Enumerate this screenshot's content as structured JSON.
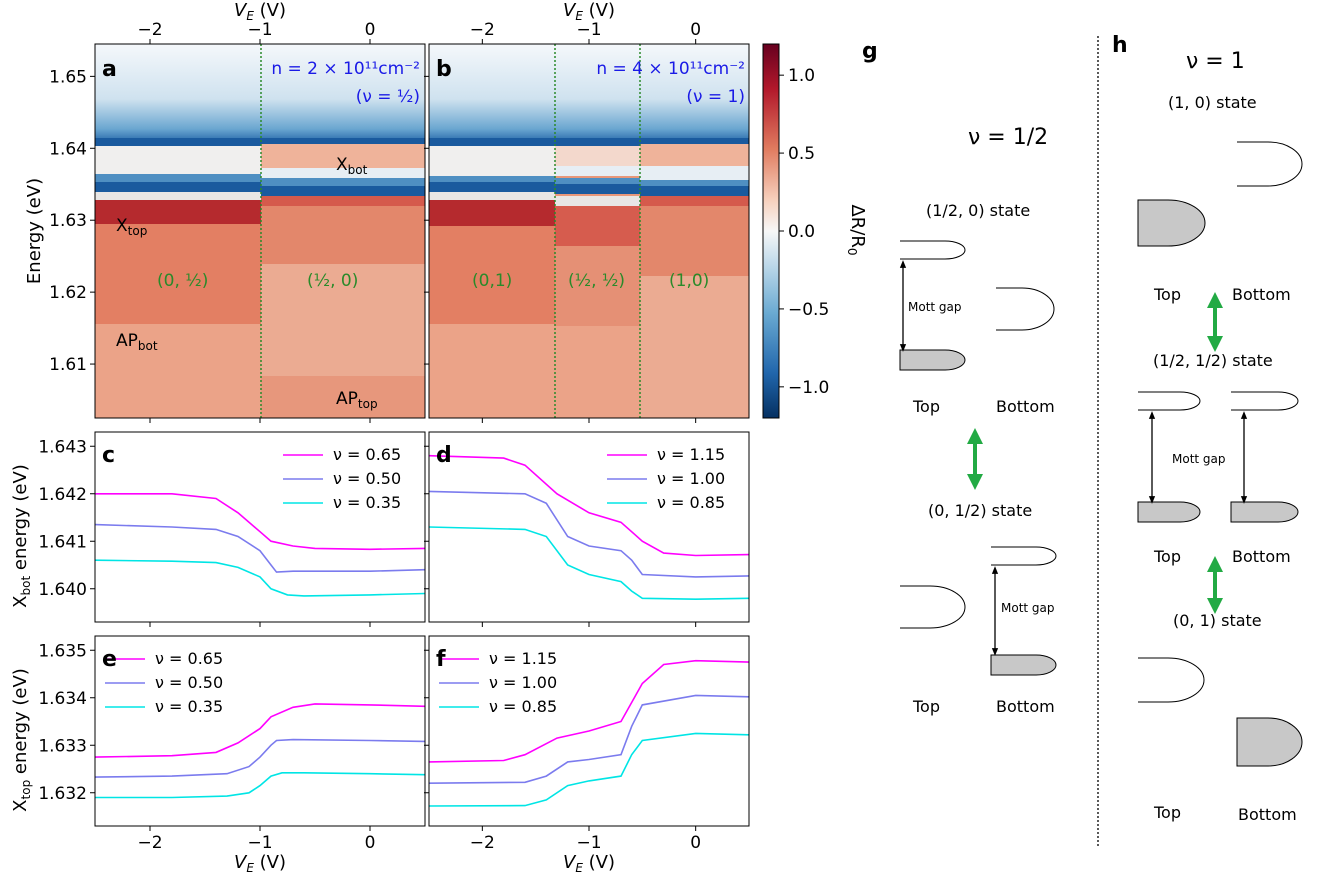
{
  "colors": {
    "magenta": "#ff00ff",
    "slate": "#7b7bee",
    "cyan": "#00e5e5",
    "mott_arrow_green": "#22aa44",
    "divider_green": "#2a8a2a",
    "annotation_blue": "#1a1ae6",
    "fill_gray": "#c8c8c8"
  },
  "axes_text": {
    "ve_label": "V",
    "ve_sub": "E",
    "unit": "(V)",
    "energy_label": "Energy (eV)",
    "xbot_label_pre": "X",
    "xbot_label_sub": "bot",
    "xtop_label_sub": "top",
    "xlabel_energy_suffix": " energy (eV)",
    "colorbar_label": "ΔR/R",
    "colorbar_sub": "0"
  },
  "panels": {
    "a": "a",
    "b": "b",
    "c": "c",
    "d": "d",
    "e": "e",
    "f": "f",
    "g": "g",
    "h": "h"
  },
  "annotations_a": {
    "density": "n = 2 × 10¹¹cm⁻²",
    "filling": "(ν = ½)",
    "x_bot_main": "X",
    "x_bot_sub": "bot",
    "x_top_main": "X",
    "x_top_sub": "top",
    "ap_bot_main": "AP",
    "ap_bot_sub": "bot",
    "ap_top_main": "AP",
    "ap_top_sub": "top",
    "state_left": "(0, ½)",
    "state_right": "(½, 0)"
  },
  "annotations_b": {
    "density": "n = 4 × 10¹¹cm⁻²",
    "filling": "(ν = 1)",
    "state_left": "(0,1)",
    "state_mid": "(½, ½)",
    "state_right": "(1,0)"
  },
  "diagram_g": {
    "title": "ν = 1/2",
    "state1": "(1/2, 0) state",
    "state2": "(0, 1/2) state",
    "mott": "Mott gap",
    "top": "Top",
    "bottom": "Bottom"
  },
  "diagram_h": {
    "title": "ν = 1",
    "state1": "(1, 0) state",
    "state2": "(1/2, 1/2) state",
    "state3": "(0, 1) state",
    "mott": "Mott gap",
    "top": "Top",
    "bottom": "Bottom"
  },
  "chart_data": [
    {
      "panel": "a",
      "type": "heatmap",
      "xlabel": "V_E (V)",
      "ylabel": "Energy (eV)",
      "xlim": [
        -2.5,
        0.5
      ],
      "ylim": [
        1.6025,
        1.6545
      ],
      "x_ticks": [
        -2,
        -1,
        0
      ],
      "y_ticks": [
        1.61,
        1.62,
        1.63,
        1.64,
        1.65
      ],
      "transition_ve": [
        -0.95
      ],
      "exciton_bands_eV": {
        "left": [
          1.6405,
          1.6328
        ],
        "right": [
          1.6414,
          1.6335
        ]
      },
      "ap_step_eV": {
        "left": 1.6148,
        "right": 1.607
      }
    },
    {
      "panel": "b",
      "type": "heatmap",
      "xlabel": "V_E (V)",
      "xlim": [
        -2.5,
        0.5
      ],
      "ylim": [
        1.6025,
        1.6545
      ],
      "x_ticks": [
        -2,
        -1,
        0
      ],
      "transition_ve": [
        -1.32,
        -0.55
      ]
    },
    {
      "panel": "colorbar",
      "type": "heatmap",
      "label": "ΔR/R0",
      "range": [
        -1.2,
        1.2
      ],
      "ticks": [
        1.0,
        0.5,
        0.0,
        -0.5,
        -1.0
      ],
      "colormap": "RdBu_r"
    },
    {
      "panel": "c",
      "type": "line",
      "ylabel": "X_bot energy (eV)",
      "xlim": [
        -2.5,
        0.5
      ],
      "ylim": [
        1.6393,
        1.6433
      ],
      "x_ticks": [
        -2,
        -1,
        0
      ],
      "y_ticks": [
        1.64,
        1.641,
        1.642,
        1.643
      ],
      "series": [
        {
          "name": "ν = 0.65",
          "x": [
            -2.5,
            -1.8,
            -1.4,
            -1.2,
            -1.0,
            -0.9,
            -0.7,
            -0.5,
            0.0,
            0.5
          ],
          "values": [
            1.642,
            1.642,
            1.6419,
            1.6416,
            1.6412,
            1.641,
            1.6409,
            1.64085,
            1.64083,
            1.64085
          ]
        },
        {
          "name": "ν = 0.50",
          "x": [
            -2.5,
            -1.8,
            -1.4,
            -1.2,
            -1.0,
            -0.9,
            -0.85,
            -0.7,
            0.0,
            0.5
          ],
          "values": [
            1.64135,
            1.6413,
            1.64125,
            1.6411,
            1.6408,
            1.6405,
            1.64035,
            1.64037,
            1.64037,
            1.6404
          ]
        },
        {
          "name": "ν = 0.35",
          "x": [
            -2.5,
            -1.8,
            -1.4,
            -1.2,
            -1.0,
            -0.9,
            -0.75,
            -0.6,
            0.0,
            0.5
          ],
          "values": [
            1.6406,
            1.64058,
            1.64055,
            1.64045,
            1.64025,
            1.64,
            1.63987,
            1.63985,
            1.63987,
            1.6399
          ]
        }
      ]
    },
    {
      "panel": "d",
      "type": "line",
      "xlim": [
        -2.5,
        0.5
      ],
      "ylim": [
        1.6393,
        1.6433
      ],
      "x_ticks": [
        -2,
        -1,
        0
      ],
      "series": [
        {
          "name": "ν = 1.15",
          "x": [
            -2.5,
            -1.8,
            -1.6,
            -1.3,
            -1.0,
            -0.7,
            -0.5,
            -0.3,
            0.0,
            0.5
          ],
          "values": [
            1.6428,
            1.64275,
            1.6426,
            1.642,
            1.6416,
            1.6414,
            1.641,
            1.64075,
            1.6407,
            1.64072
          ]
        },
        {
          "name": "ν = 1.00",
          "x": [
            -2.5,
            -1.6,
            -1.4,
            -1.2,
            -1.0,
            -0.7,
            -0.6,
            -0.5,
            0.0,
            0.5
          ],
          "values": [
            1.64205,
            1.642,
            1.6418,
            1.6411,
            1.6409,
            1.6408,
            1.6406,
            1.6403,
            1.64025,
            1.64027
          ]
        },
        {
          "name": "ν = 0.85",
          "x": [
            -2.5,
            -1.6,
            -1.4,
            -1.2,
            -1.0,
            -0.7,
            -0.6,
            -0.5,
            0.0,
            0.5
          ],
          "values": [
            1.6413,
            1.64125,
            1.6411,
            1.6405,
            1.6403,
            1.64015,
            1.63995,
            1.6398,
            1.63978,
            1.6398
          ]
        }
      ]
    },
    {
      "panel": "e",
      "type": "line",
      "ylabel": "X_top energy (eV)",
      "xlim": [
        -2.5,
        0.5
      ],
      "ylim": [
        1.6313,
        1.6353
      ],
      "x_ticks": [
        -2,
        -1,
        0
      ],
      "y_ticks": [
        1.632,
        1.633,
        1.634,
        1.635
      ],
      "series": [
        {
          "name": "ν = 0.65",
          "x": [
            -2.5,
            -1.8,
            -1.4,
            -1.2,
            -1.0,
            -0.9,
            -0.7,
            -0.5,
            0.0,
            0.5
          ],
          "values": [
            1.63275,
            1.63278,
            1.63285,
            1.63305,
            1.63335,
            1.6336,
            1.6338,
            1.63387,
            1.63385,
            1.63382
          ]
        },
        {
          "name": "ν = 0.50",
          "x": [
            -2.5,
            -1.8,
            -1.3,
            -1.1,
            -1.0,
            -0.9,
            -0.85,
            -0.7,
            0.0,
            0.5
          ],
          "values": [
            1.63233,
            1.63235,
            1.6324,
            1.63255,
            1.63275,
            1.633,
            1.6331,
            1.63312,
            1.6331,
            1.63308
          ]
        },
        {
          "name": "ν = 0.35",
          "x": [
            -2.5,
            -1.8,
            -1.3,
            -1.1,
            -1.0,
            -0.9,
            -0.8,
            -0.6,
            0.0,
            0.5
          ],
          "values": [
            1.6319,
            1.6319,
            1.63193,
            1.632,
            1.63215,
            1.63235,
            1.63242,
            1.63242,
            1.6324,
            1.63238
          ]
        }
      ]
    },
    {
      "panel": "f",
      "type": "line",
      "xlim": [
        -2.5,
        0.5
      ],
      "ylim": [
        1.6313,
        1.6353
      ],
      "x_ticks": [
        -2,
        -1,
        0
      ],
      "series": [
        {
          "name": "ν = 1.15",
          "x": [
            -2.5,
            -1.8,
            -1.6,
            -1.3,
            -1.0,
            -0.7,
            -0.5,
            -0.3,
            0.0,
            0.5
          ],
          "values": [
            1.63265,
            1.63268,
            1.6328,
            1.63315,
            1.6333,
            1.6335,
            1.6343,
            1.6347,
            1.63478,
            1.63475
          ]
        },
        {
          "name": "ν = 1.00",
          "x": [
            -2.5,
            -1.6,
            -1.4,
            -1.2,
            -1.0,
            -0.7,
            -0.6,
            -0.5,
            0.0,
            0.5
          ],
          "values": [
            1.6322,
            1.63222,
            1.63235,
            1.63265,
            1.6327,
            1.6328,
            1.6334,
            1.63385,
            1.63405,
            1.63402
          ]
        },
        {
          "name": "ν = 0.85",
          "x": [
            -2.5,
            -1.6,
            -1.4,
            -1.2,
            -1.0,
            -0.7,
            -0.6,
            -0.5,
            0.0,
            0.5
          ],
          "values": [
            1.63172,
            1.63173,
            1.63185,
            1.63215,
            1.63225,
            1.63235,
            1.6328,
            1.6331,
            1.63325,
            1.63322
          ]
        }
      ]
    }
  ]
}
